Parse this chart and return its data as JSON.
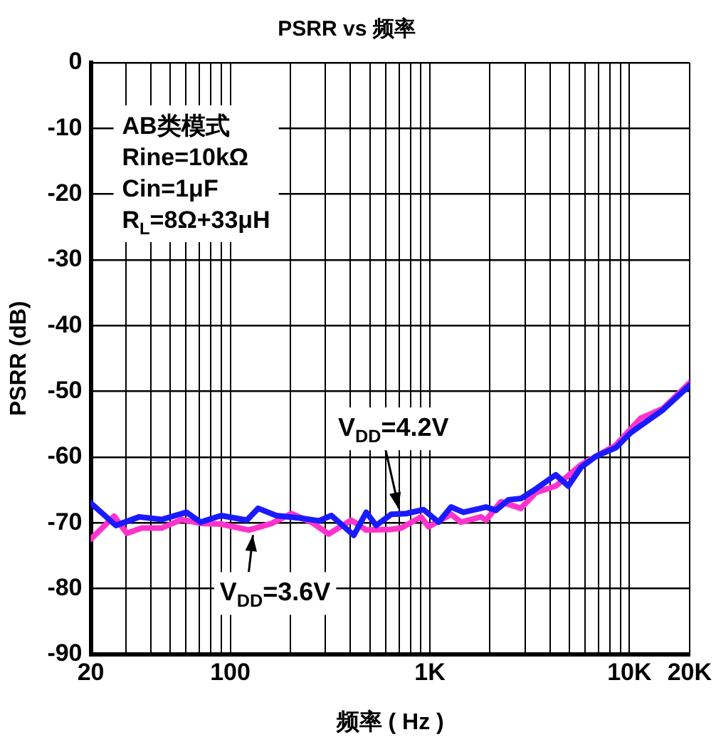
{
  "chart_data": {
    "type": "line",
    "title": "PSRR vs 频率",
    "xlabel": "频率 ( Hz )",
    "ylabel": "PSRR (dB)",
    "log": "x",
    "xlim": [
      20,
      20000
    ],
    "ylim": [
      -90,
      0
    ],
    "xticks": [
      20,
      {
        "value": 30,
        "label": null
      },
      {
        "value": 40,
        "label": null
      },
      {
        "value": 50,
        "label": null
      },
      {
        "value": 60,
        "label": null
      },
      {
        "value": 70,
        "label": null
      },
      {
        "value": 80,
        "label": null
      },
      {
        "value": 90,
        "label": null
      },
      100,
      {
        "value": 200,
        "label": null
      },
      {
        "value": 300,
        "label": null
      },
      {
        "value": 400,
        "label": null
      },
      {
        "value": 500,
        "label": null
      },
      {
        "value": 600,
        "label": null
      },
      {
        "value": 700,
        "label": null
      },
      {
        "value": 800,
        "label": null
      },
      {
        "value": 900,
        "label": null
      },
      {
        "value": 1000,
        "label": "1K"
      },
      {
        "value": 2000,
        "label": null
      },
      {
        "value": 3000,
        "label": null
      },
      {
        "value": 4000,
        "label": null
      },
      {
        "value": 5000,
        "label": null
      },
      {
        "value": 6000,
        "label": null
      },
      {
        "value": 7000,
        "label": null
      },
      {
        "value": 8000,
        "label": null
      },
      {
        "value": 9000,
        "label": null
      },
      {
        "value": 10000,
        "label": "10K"
      },
      {
        "value": 20000,
        "label": "20K"
      }
    ],
    "yticks": [
      -90,
      -80,
      -70,
      -60,
      -50,
      -40,
      -30,
      -20,
      -10,
      0
    ],
    "grid": true,
    "legend": false,
    "line_style": "solid",
    "marker": "none",
    "series": [
      {
        "color": "#1a1aff",
        "x": [
          20,
          26.7,
          35,
          45.3,
          60.4,
          71,
          90,
          121,
          138,
          170,
          227,
          278,
          321,
          416,
          480,
          538,
          640,
          760,
          930,
          1106,
          1276,
          1474,
          1910,
          2143,
          2475,
          2858,
          3300,
          4276,
          4937,
          5703,
          6776,
          8531,
          10140,
          14740,
          20000
        ],
        "values": [
          -67.0,
          -70.4,
          -69.1,
          -69.5,
          -68.4,
          -69.9,
          -68.9,
          -69.6,
          -67.8,
          -68.9,
          -69.3,
          -69.7,
          -68.9,
          -71.9,
          -68.4,
          -70.4,
          -68.7,
          -68.6,
          -68.0,
          -69.9,
          -67.6,
          -68.4,
          -67.6,
          -68.1,
          -66.5,
          -66.3,
          -65.1,
          -62.7,
          -64.4,
          -61.6,
          -59.9,
          -58.6,
          -56.3,
          -52.8,
          -49.1
        ]
      },
      {
        "color": "#ff33cc",
        "x": [
          20,
          26.2,
          30.3,
          36,
          45.3,
          57,
          71.8,
          90,
          124,
          161,
          202,
          255,
          311,
          404,
          480,
          640,
          718,
          903,
          985,
          1276,
          1432,
          1803,
          1910,
          2270,
          2858,
          3396,
          4276,
          5703,
          8531,
          11380,
          14740,
          20000
        ],
        "values": [
          -72.5,
          -69.0,
          -71.6,
          -70.8,
          -70.8,
          -69.5,
          -70.1,
          -70.2,
          -71.1,
          -70.1,
          -68.6,
          -69.9,
          -71.7,
          -69.6,
          -71.1,
          -71.0,
          -70.8,
          -69.1,
          -70.6,
          -68.7,
          -69.9,
          -69.1,
          -69.6,
          -66.8,
          -67.8,
          -65.4,
          -64.4,
          -61.2,
          -58.2,
          -54.1,
          -52.6,
          -48.7
        ]
      }
    ],
    "annotations": [
      "AB类模式",
      "Rine=10kΩ",
      "Cin=1μF",
      "R$_{L}$=8Ω+33μH",
      {
        "text": "V$_{DD}$=4.2V",
        "x": 700,
        "y": -68.7
      },
      {
        "text": "V$_{DD}$=3.6V",
        "x": 130,
        "y": -71
      }
    ]
  }
}
